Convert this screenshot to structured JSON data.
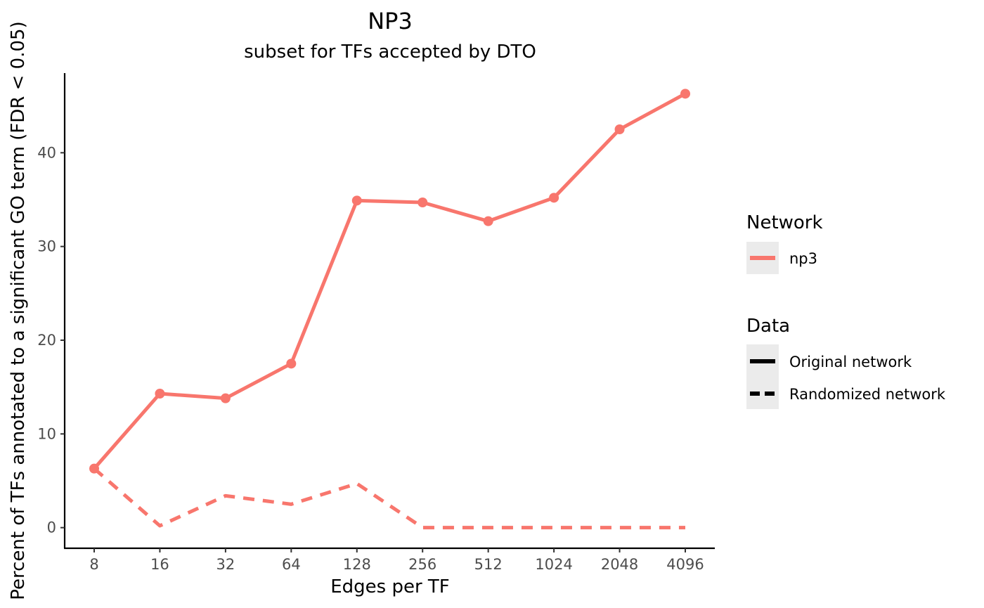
{
  "chart_data": {
    "type": "line",
    "title": "NP3",
    "subtitle": "subset for TFs accepted by DTO",
    "xlabel": "Edges per TF",
    "ylabel": "Percent of TFs annotated to a significant GO term (FDR < 0.05)",
    "categories": [
      "8",
      "16",
      "32",
      "64",
      "128",
      "256",
      "512",
      "1024",
      "2048",
      "4096"
    ],
    "ylim": [
      -2.2,
      48.5
    ],
    "yticks": [
      0,
      10,
      20,
      30,
      40
    ],
    "grid": false,
    "legend_position": "right",
    "color": "#F8766D",
    "series": [
      {
        "network": "np3",
        "data": "Original network",
        "linetype": "solid",
        "points": true,
        "values": [
          6.3,
          14.3,
          13.8,
          17.5,
          34.9,
          34.7,
          32.7,
          35.2,
          42.5,
          46.3
        ]
      },
      {
        "network": "np3",
        "data": "Randomized network",
        "linetype": "dashed",
        "points": false,
        "values": [
          6.3,
          0.2,
          3.4,
          2.5,
          4.7,
          0,
          0,
          0,
          0,
          0
        ]
      }
    ],
    "legend": {
      "network": {
        "title": "Network",
        "items": [
          "np3"
        ]
      },
      "data": {
        "title": "Data",
        "items": [
          "Original network",
          "Randomized network"
        ]
      }
    }
  }
}
